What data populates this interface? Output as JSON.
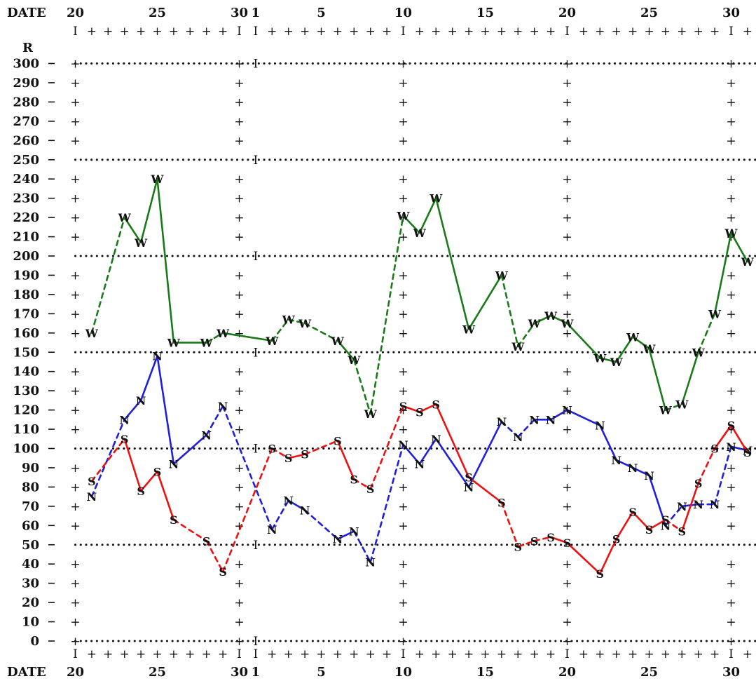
{
  "chart_data": {
    "type": "line",
    "header_label": "DATE",
    "y_axis_label": "R",
    "ylim": [
      0,
      300
    ],
    "y_ticks": [
      0,
      10,
      20,
      30,
      40,
      50,
      60,
      70,
      80,
      90,
      100,
      110,
      120,
      130,
      140,
      150,
      160,
      170,
      180,
      190,
      200,
      210,
      220,
      230,
      240,
      250,
      260,
      270,
      280,
      290,
      300
    ],
    "dotted_gridlines": [
      0,
      50,
      100,
      150,
      200,
      250,
      300
    ],
    "x_day_labels": [
      "20",
      "25",
      "30",
      "1",
      "5",
      "10",
      "15",
      "20",
      "25",
      "30"
    ],
    "x_label_positions": [
      20,
      25,
      30,
      31,
      35,
      40,
      45,
      50,
      55,
      60
    ],
    "month_boundaries": [
      20,
      30,
      31,
      40,
      50,
      60
    ],
    "x_range": [
      20,
      61
    ],
    "colors": {
      "W": "#1a7a1a",
      "N": "#1f1fdd",
      "S": "#ee1111",
      "grid": "#111111"
    },
    "series": [
      {
        "letter": "W",
        "values": [
          [
            21,
            160
          ],
          [
            23,
            220
          ],
          [
            24,
            207
          ],
          [
            25,
            240
          ],
          [
            26,
            155
          ],
          [
            28,
            155
          ],
          [
            29,
            160
          ],
          [
            32,
            156
          ],
          [
            33,
            167
          ],
          [
            34,
            165
          ],
          [
            36,
            156
          ],
          [
            37,
            146
          ],
          [
            38,
            118
          ],
          [
            40,
            221
          ],
          [
            41,
            212
          ],
          [
            42,
            230
          ],
          [
            44,
            162
          ],
          [
            46,
            190
          ],
          [
            47,
            153
          ],
          [
            48,
            165
          ],
          [
            49,
            169
          ],
          [
            50,
            165
          ],
          [
            52,
            147
          ],
          [
            53,
            145
          ],
          [
            54,
            158
          ],
          [
            55,
            152
          ],
          [
            56,
            120
          ],
          [
            57,
            123
          ],
          [
            58,
            150
          ],
          [
            59,
            170
          ],
          [
            60,
            212
          ],
          [
            61,
            197
          ]
        ],
        "dashed_after": [
          0,
          5,
          7,
          8,
          9,
          11,
          12,
          17,
          18,
          26,
          28
        ]
      },
      {
        "letter": "N",
        "values": [
          [
            21,
            75
          ],
          [
            23,
            115
          ],
          [
            24,
            125
          ],
          [
            25,
            148
          ],
          [
            26,
            92
          ],
          [
            28,
            107
          ],
          [
            29,
            122
          ],
          [
            32,
            58
          ],
          [
            33,
            73
          ],
          [
            34,
            68
          ],
          [
            36,
            53
          ],
          [
            37,
            57
          ],
          [
            38,
            41
          ],
          [
            40,
            102
          ],
          [
            41,
            92
          ],
          [
            42,
            105
          ],
          [
            44,
            80
          ],
          [
            46,
            114
          ],
          [
            47,
            106
          ],
          [
            48,
            115
          ],
          [
            49,
            115
          ],
          [
            50,
            120
          ],
          [
            52,
            112
          ],
          [
            53,
            94
          ],
          [
            54,
            90
          ],
          [
            55,
            86
          ],
          [
            56,
            60
          ],
          [
            57,
            70
          ],
          [
            58,
            71
          ],
          [
            59,
            71
          ],
          [
            60,
            101
          ],
          [
            61,
            99
          ]
        ],
        "dashed_after": [
          0,
          5,
          6,
          7,
          9,
          11,
          12,
          17,
          18,
          26,
          28,
          29
        ]
      },
      {
        "letter": "S",
        "values": [
          [
            21,
            83
          ],
          [
            23,
            105
          ],
          [
            24,
            78
          ],
          [
            25,
            88
          ],
          [
            26,
            63
          ],
          [
            28,
            52
          ],
          [
            29,
            36
          ],
          [
            32,
            100
          ],
          [
            33,
            95
          ],
          [
            34,
            97
          ],
          [
            36,
            104
          ],
          [
            37,
            84
          ],
          [
            38,
            79
          ],
          [
            40,
            122
          ],
          [
            41,
            119
          ],
          [
            42,
            123
          ],
          [
            44,
            85
          ],
          [
            46,
            72
          ],
          [
            47,
            49
          ],
          [
            48,
            52
          ],
          [
            49,
            54
          ],
          [
            50,
            51
          ],
          [
            52,
            35
          ],
          [
            53,
            53
          ],
          [
            54,
            67
          ],
          [
            55,
            58
          ],
          [
            56,
            63
          ],
          [
            57,
            57
          ],
          [
            58,
            82
          ],
          [
            59,
            100
          ],
          [
            60,
            112
          ],
          [
            61,
            98
          ]
        ],
        "dashed_after": [
          0,
          4,
          5,
          6,
          7,
          9,
          11,
          12,
          17,
          18,
          19,
          26,
          28
        ]
      }
    ]
  }
}
